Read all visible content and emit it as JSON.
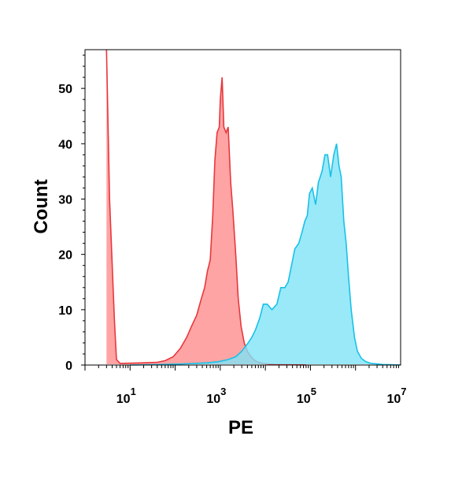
{
  "chart_data": {
    "type": "area",
    "title": "",
    "xlabel": "PE",
    "ylabel": "Count",
    "x_scale": "log",
    "xlim": [
      1,
      10000000
    ],
    "ylim": [
      0,
      57
    ],
    "grid": false,
    "y_ticks": [
      {
        "value": 0,
        "label": "0"
      },
      {
        "value": 10,
        "label": "10"
      },
      {
        "value": 20,
        "label": "20"
      },
      {
        "value": 30,
        "label": "30"
      },
      {
        "value": 40,
        "label": "40"
      },
      {
        "value": 50,
        "label": "50"
      }
    ],
    "x_ticks": [
      {
        "value": 10,
        "base": "10",
        "exp": "1"
      },
      {
        "value": 1000,
        "base": "10",
        "exp": "3"
      },
      {
        "value": 100000,
        "base": "10",
        "exp": "5"
      },
      {
        "value": 10000000,
        "base": "10",
        "exp": "7"
      }
    ],
    "series": [
      {
        "color": "#e8373c",
        "fill": "#ff9f9f",
        "x": [
          3,
          3.5,
          4.5,
          5,
          6,
          20,
          40,
          60,
          90,
          130,
          180,
          230,
          300,
          380,
          450,
          520,
          600,
          680,
          760,
          850,
          950,
          1000,
          1100,
          1200,
          1350,
          1500,
          1700,
          1900,
          2200,
          2500,
          2900,
          3400,
          4000,
          4700,
          5500,
          6500,
          7800,
          9000,
          11000,
          14000,
          18000,
          25000,
          40000,
          80000
        ],
        "values": [
          57,
          30,
          8,
          1,
          0.3,
          0.4,
          0.5,
          0.8,
          1.5,
          3,
          5,
          7,
          9,
          12,
          14,
          17,
          19,
          27,
          37,
          42,
          43,
          48,
          52,
          43,
          42,
          43,
          33,
          28,
          20,
          12,
          7,
          4,
          2.5,
          1.6,
          1,
          0.6,
          0.4,
          0.3,
          0.2,
          0.15,
          0.1,
          0.1,
          0.05,
          0
        ]
      },
      {
        "color": "#19c1e8",
        "fill": "#7fe3f8",
        "x": [
          10,
          50,
          150,
          500,
          900,
          1500,
          2200,
          3000,
          4000,
          5000,
          6000,
          7500,
          9000,
          11000,
          14000,
          18000,
          22000,
          27000,
          32000,
          38000,
          45000,
          55000,
          65000,
          75000,
          85000,
          95000,
          110000,
          130000,
          150000,
          180000,
          210000,
          240000,
          280000,
          330000,
          380000,
          430000,
          480000,
          550000,
          620000,
          700000,
          800000,
          950000,
          1100000,
          1350000,
          1700000,
          2200000,
          3000000,
          4000000,
          6000000,
          10000000
        ],
        "values": [
          0,
          0.1,
          0.2,
          0.4,
          0.6,
          1,
          1.5,
          2.5,
          3.8,
          5,
          6.3,
          8.5,
          11,
          11,
          10,
          11,
          14,
          14,
          15,
          18,
          21,
          22,
          24,
          26,
          27,
          31,
          32,
          29,
          33,
          35,
          38,
          38,
          34,
          38,
          40,
          36,
          34,
          26,
          22,
          16,
          10,
          5,
          2.5,
          1.2,
          0.6,
          0.3,
          0.2,
          0.1,
          0.05,
          0
        ]
      }
    ]
  }
}
